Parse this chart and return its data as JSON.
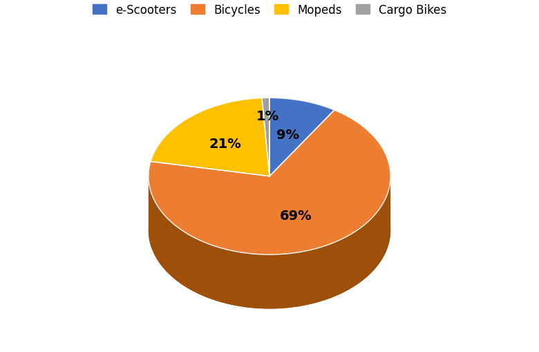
{
  "labels": [
    "e-Scooters",
    "Bicycles",
    "Mopeds",
    "Cargo Bikes"
  ],
  "values": [
    9,
    69,
    21,
    1
  ],
  "colors": [
    "#4472C4",
    "#ED7D31",
    "#FFC000",
    "#A0A0A0"
  ],
  "dark_colors": [
    "#2A4A8A",
    "#9E4F0A",
    "#8B6914",
    "#707070"
  ],
  "pct_labels": [
    "9%",
    "69%",
    "21%",
    "1%"
  ],
  "legend_labels": [
    "e-Scooters",
    "Bicycles",
    "Mopeds",
    "Cargo Bikes"
  ],
  "startangle": 90,
  "figsize": [
    7.8,
    5.1
  ],
  "dpi": 100,
  "ecx": 0.0,
  "ecy": 0.1,
  "erx": 0.85,
  "ery": 0.55,
  "edepth": 0.38
}
